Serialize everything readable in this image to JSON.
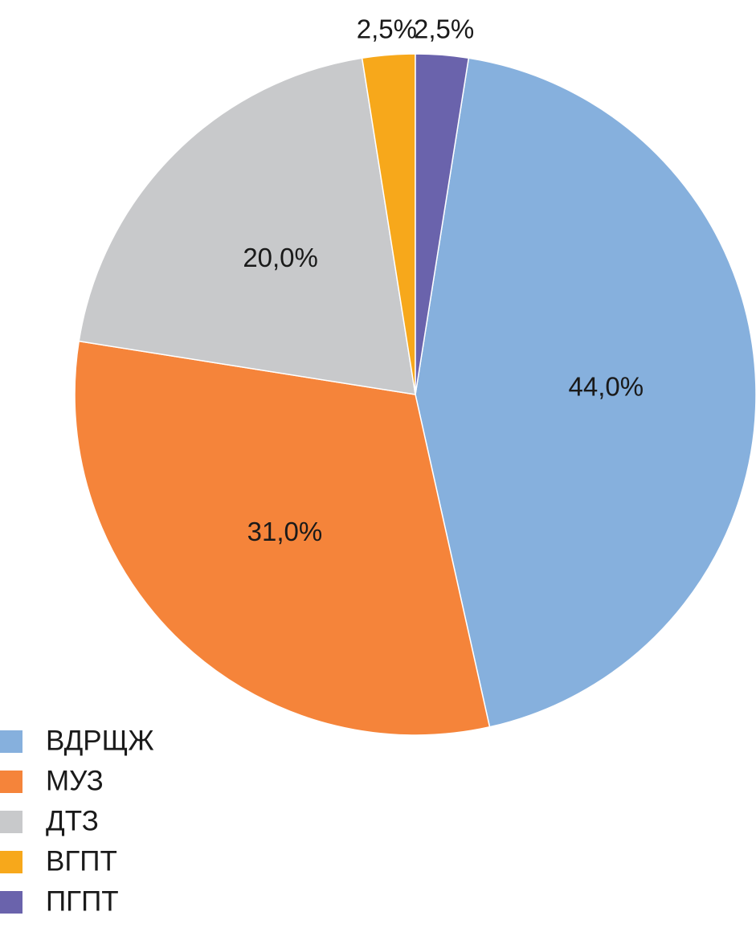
{
  "chart_data": {
    "type": "pie",
    "categories": [
      "ВДРЩЖ",
      "МУЗ",
      "ДТЗ",
      "ВГПТ",
      "ПГПТ"
    ],
    "values": [
      44.0,
      31.0,
      20.0,
      2.5,
      2.5
    ],
    "value_labels": [
      "44,0%",
      "31,0%",
      "20,0%",
      "2,5%",
      "2,5%"
    ],
    "colors": [
      "#86b0dd",
      "#f5843a",
      "#c8c9cb",
      "#f7a81b",
      "#6a63ac"
    ],
    "legend": "bottom-left"
  }
}
